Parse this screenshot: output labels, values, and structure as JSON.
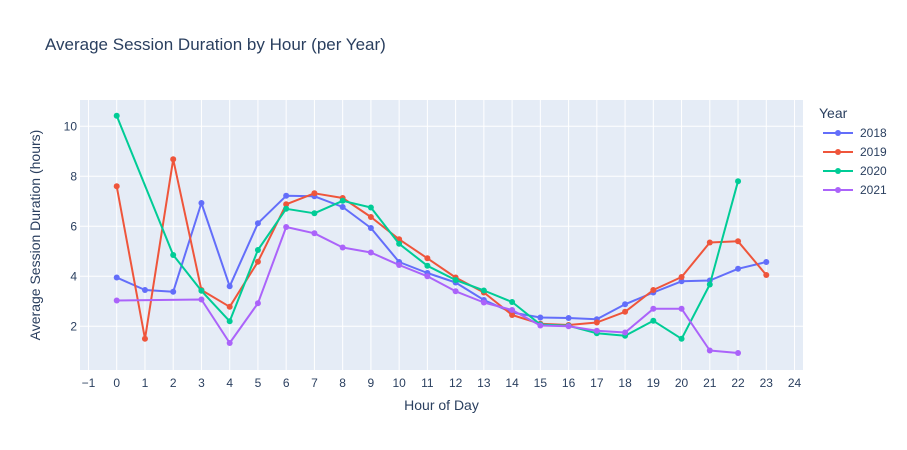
{
  "chart_data": {
    "type": "line",
    "title": "Average Session Duration by Hour (per Year)",
    "xlabel": "Hour of Day",
    "ylabel": "Average Session Duration (hours)",
    "xlim": [
      -1.3,
      24.3
    ],
    "ylim": [
      0.25,
      11.05
    ],
    "x_ticks": [
      -1,
      0,
      1,
      2,
      3,
      4,
      5,
      6,
      7,
      8,
      9,
      10,
      11,
      12,
      13,
      14,
      15,
      16,
      17,
      18,
      19,
      20,
      21,
      22,
      23,
      24
    ],
    "y_ticks": [
      2,
      4,
      6,
      8,
      10
    ],
    "grid": true,
    "legend": {
      "title": "Year",
      "placement": "right"
    },
    "plot_bg": "#e5ecf6",
    "series": [
      {
        "name": "2018",
        "color": "#636efa",
        "x": [
          0,
          1,
          2,
          3,
          4,
          5,
          6,
          7,
          8,
          9,
          10,
          11,
          12,
          13,
          14,
          15,
          16,
          17,
          18,
          19,
          20,
          21,
          22,
          23
        ],
        "values": [
          3.95,
          3.45,
          3.38,
          6.93,
          3.6,
          6.12,
          7.22,
          7.2,
          6.77,
          5.93,
          4.57,
          4.13,
          3.75,
          3.05,
          2.55,
          2.35,
          2.33,
          2.28,
          2.88,
          3.35,
          3.8,
          3.83,
          4.3,
          4.57
        ]
      },
      {
        "name": "2019",
        "color": "#ef553b",
        "x": [
          0,
          1,
          2,
          3,
          4,
          5,
          6,
          7,
          8,
          9,
          10,
          11,
          12,
          13,
          14,
          15,
          16,
          17,
          18,
          19,
          20,
          21,
          22,
          23
        ],
        "values": [
          7.6,
          1.5,
          8.68,
          3.45,
          2.78,
          4.58,
          6.88,
          7.32,
          7.13,
          6.37,
          5.48,
          4.72,
          3.95,
          3.35,
          2.45,
          2.1,
          2.05,
          2.15,
          2.58,
          3.45,
          3.97,
          5.35,
          5.4,
          4.05
        ]
      },
      {
        "name": "2020",
        "color": "#00cc96",
        "x": [
          0,
          2,
          3,
          4,
          5,
          6,
          7,
          8,
          9,
          10,
          11,
          12,
          13,
          14,
          15,
          16,
          17,
          18,
          19,
          20,
          21,
          22
        ],
        "values": [
          10.42,
          4.85,
          3.42,
          2.2,
          5.05,
          6.7,
          6.52,
          7.02,
          6.75,
          5.3,
          4.42,
          3.85,
          3.43,
          2.97,
          2.07,
          2.02,
          1.72,
          1.62,
          2.22,
          1.5,
          3.67,
          7.8
        ]
      },
      {
        "name": "2021",
        "color": "#ab63fa",
        "x": [
          0,
          3,
          4,
          5,
          6,
          7,
          8,
          9,
          10,
          11,
          12,
          13,
          14,
          15,
          16,
          17,
          18,
          19,
          20,
          21,
          22
        ],
        "values": [
          3.03,
          3.07,
          1.33,
          2.92,
          5.97,
          5.72,
          5.15,
          4.95,
          4.45,
          4.0,
          3.4,
          2.95,
          2.65,
          2.03,
          2.0,
          1.82,
          1.75,
          2.7,
          2.7,
          1.03,
          0.93
        ]
      }
    ]
  }
}
